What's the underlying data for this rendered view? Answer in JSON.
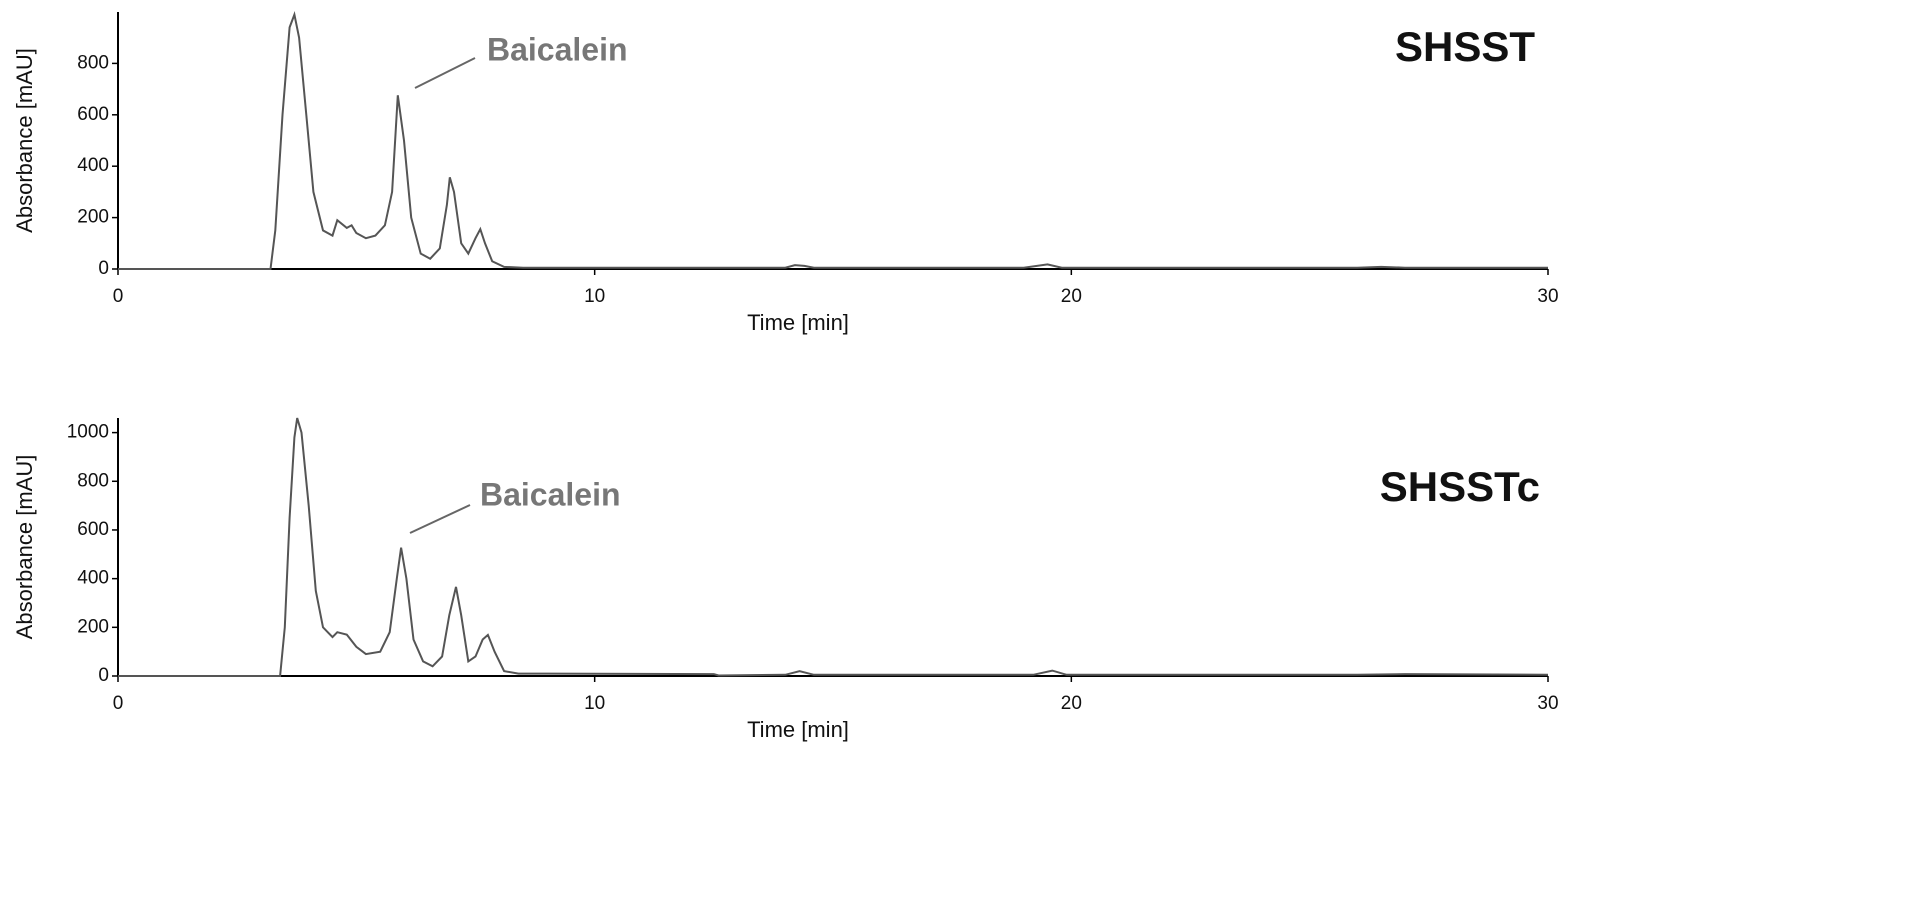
{
  "chart_data": [
    {
      "type": "line",
      "title": "SHSST",
      "annotation": "Baicalein",
      "xlabel": "Time [min]",
      "ylabel": "Absorbance [mAU]",
      "color": "#555555",
      "xlim": [
        0,
        30
      ],
      "xticks": [
        0,
        10,
        20,
        30
      ],
      "ylim": [
        0,
        1000
      ],
      "yticks": [
        0,
        200,
        400,
        600,
        800
      ],
      "x": [
        0,
        3.2,
        3.3,
        3.45,
        3.6,
        3.7,
        3.8,
        3.95,
        4.1,
        4.3,
        4.5,
        4.6,
        4.8,
        4.9,
        5.0,
        5.2,
        5.4,
        5.6,
        5.75,
        5.87,
        6.0,
        6.15,
        6.35,
        6.55,
        6.75,
        6.9,
        6.96,
        7.05,
        7.2,
        7.35,
        7.5,
        7.6,
        7.7,
        7.85,
        8.1,
        8.5,
        9.0,
        14.0,
        14.2,
        14.4,
        14.6,
        19.0,
        19.5,
        19.8,
        26.0,
        26.5,
        27.0,
        30
      ],
      "values": [
        0,
        0,
        150,
        600,
        940,
        990,
        900,
        600,
        300,
        150,
        130,
        190,
        160,
        170,
        140,
        120,
        130,
        170,
        300,
        676,
        500,
        200,
        60,
        40,
        80,
        250,
        357,
        300,
        100,
        60,
        120,
        155,
        100,
        30,
        8,
        5,
        5,
        5,
        15,
        12,
        5,
        5,
        18,
        5,
        5,
        8,
        5,
        5
      ]
    },
    {
      "type": "line",
      "title": "SHSSTc",
      "annotation": "Baicalein",
      "xlabel": "Time [min]",
      "ylabel": "Absorbance [mAU]",
      "color": "#555555",
      "xlim": [
        0,
        30
      ],
      "xticks": [
        0,
        10,
        20,
        30
      ],
      "ylim": [
        0,
        1060
      ],
      "yticks": [
        0,
        200,
        400,
        600,
        800,
        1000
      ],
      "x": [
        0,
        3.4,
        3.5,
        3.6,
        3.7,
        3.76,
        3.85,
        4.0,
        4.15,
        4.3,
        4.5,
        4.6,
        4.8,
        5.0,
        5.2,
        5.5,
        5.7,
        5.85,
        5.94,
        6.05,
        6.2,
        6.4,
        6.6,
        6.8,
        6.95,
        7.09,
        7.2,
        7.35,
        7.5,
        7.65,
        7.76,
        7.9,
        8.1,
        8.4,
        9.0,
        12.5,
        12.6,
        14.0,
        14.3,
        14.6,
        19.2,
        19.6,
        19.9,
        26.0,
        27.0,
        30
      ],
      "values": [
        0,
        0,
        200,
        650,
        980,
        1060,
        1000,
        700,
        350,
        200,
        160,
        180,
        170,
        120,
        90,
        100,
        180,
        400,
        527,
        400,
        150,
        60,
        40,
        80,
        250,
        366,
        250,
        60,
        80,
        150,
        169,
        100,
        20,
        10,
        10,
        8,
        2,
        5,
        20,
        5,
        5,
        22,
        5,
        5,
        8,
        5
      ]
    }
  ]
}
